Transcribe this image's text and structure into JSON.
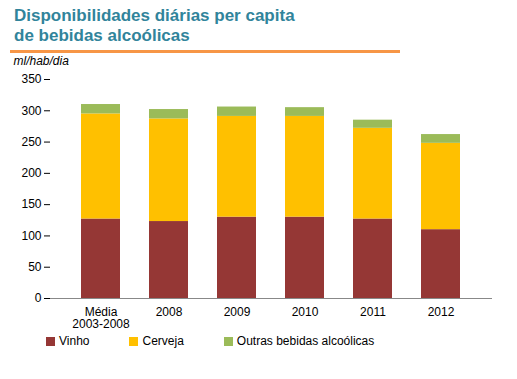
{
  "chart_data": {
    "type": "bar",
    "stacked": true,
    "title": "Disponibilidades diárias per capita de bebidas alcoólicas",
    "y_label": "ml/hab/dia",
    "categories": [
      "Média 2003-2008",
      "2008",
      "2009",
      "2010",
      "2011",
      "2012"
    ],
    "series": [
      {
        "name": "Vinho",
        "color": "#953735",
        "values": [
          127,
          123,
          130,
          130,
          127,
          110
        ]
      },
      {
        "name": "Cerveja",
        "color": "#ffc000",
        "values": [
          168,
          164,
          161,
          161,
          145,
          138
        ]
      },
      {
        "name": "Outras bebidas alcoólicas",
        "color": "#9bbb59",
        "values": [
          15,
          15,
          15,
          14,
          13,
          14
        ]
      }
    ],
    "ylim": [
      0,
      350
    ],
    "yticks": [
      0,
      50,
      100,
      150,
      200,
      250,
      300,
      350
    ],
    "grid": false,
    "legend": "bottom"
  }
}
